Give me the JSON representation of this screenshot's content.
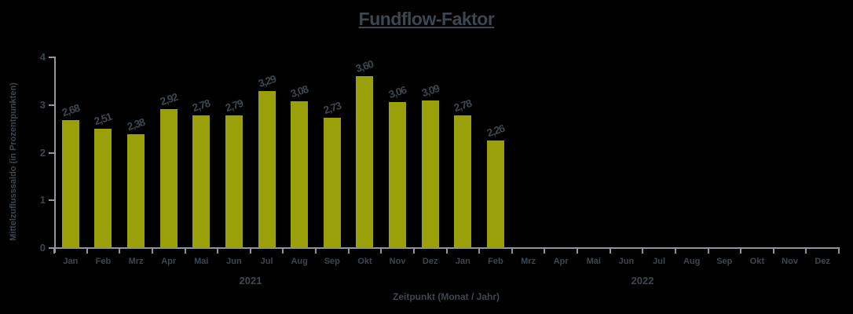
{
  "chart_data": {
    "type": "bar",
    "title": "Fundflow-Faktor",
    "xlabel": "Zeitpunkt (Monat / Jahr)",
    "ylabel": "Mittelzuflusssaldo (in Prozentpunkten)",
    "ylim": [
      0,
      4
    ],
    "yticks": [
      0,
      1,
      2,
      3,
      4
    ],
    "grid": "off",
    "legend": "none",
    "categories": [
      "Jan",
      "Feb",
      "Mrz",
      "Apr",
      "Mai",
      "Jun",
      "Jul",
      "Aug",
      "Sep",
      "Okt",
      "Nov",
      "Dez",
      "Jan",
      "Feb",
      "Mrz",
      "Apr",
      "Mai",
      "Jun",
      "Jul",
      "Aug",
      "Sep",
      "Okt",
      "Nov",
      "Dez"
    ],
    "year_groups": [
      {
        "label": "2021",
        "months_start": 0,
        "months_count": 12
      },
      {
        "label": "2022",
        "months_start": 12,
        "months_count": 12
      }
    ],
    "values": [
      2.68,
      2.51,
      2.38,
      2.92,
      2.78,
      2.79,
      3.29,
      3.08,
      2.73,
      3.6,
      3.06,
      3.09,
      2.78,
      2.26
    ],
    "value_labels": [
      "2,68",
      "2,51",
      "2,38",
      "2,92",
      "2,78",
      "2,79",
      "3,29",
      "3,08",
      "2,73",
      "3,60",
      "3,06",
      "3,09",
      "2,78",
      "2,26"
    ],
    "colors": {
      "bar": "#9aa00a",
      "text": "#3d474f",
      "axis": "#8f959a",
      "background": "#000000"
    }
  }
}
